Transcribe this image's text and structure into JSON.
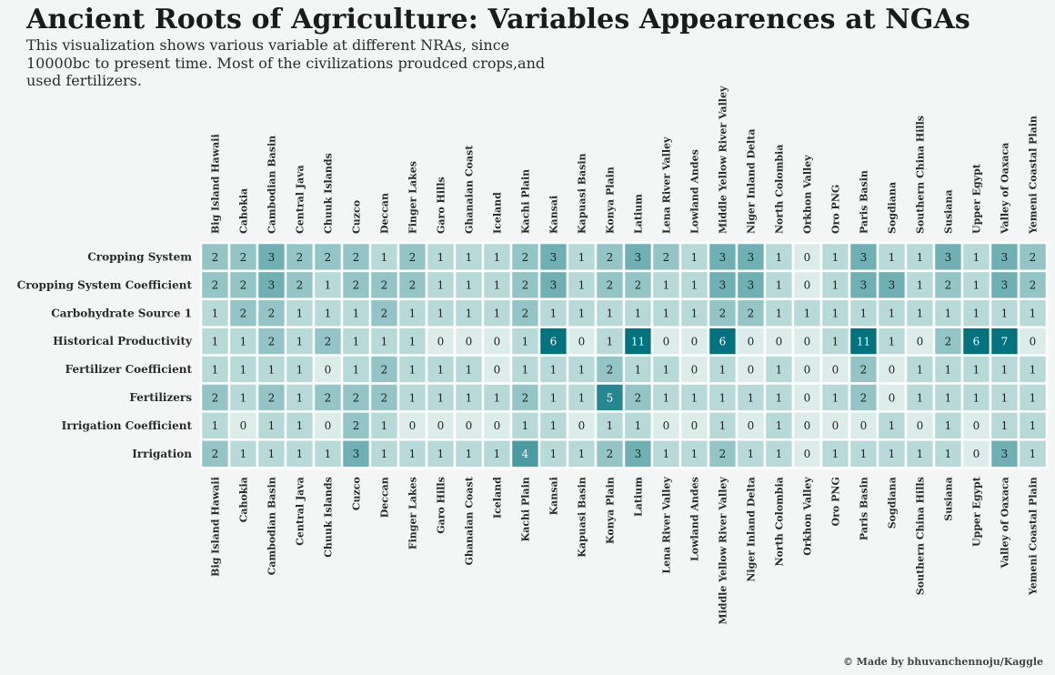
{
  "title": "Ancient Roots of Agriculture: Variables Appearences at NGAs",
  "subtitle": "This visualization shows various variable at different NRAs, since 10000bc to present time. Most of the civilizations proudced crops,and used fertilizers.",
  "credit": "© Made by bhuvanchennoju/Kaggle",
  "colors": {
    "background": "#f4f6f5",
    "low": "#dcede9",
    "high": "#00737f",
    "cell_border": "#ffffff"
  },
  "chart_data": {
    "type": "heatmap",
    "title": "Ancient Roots of Agriculture: Variables Appearences at NGAs",
    "color_max": 6,
    "x_labels_position": "top and bottom",
    "columns": [
      "Big Island Hawaii",
      "Cahokia",
      "Cambodian Basin",
      "Central Java",
      "Chuuk Islands",
      "Cuzco",
      "Deccan",
      "Finger Lakes",
      "Garo Hills",
      "Ghanaian Coast",
      "Iceland",
      "Kachi Plain",
      "Kansai",
      "Kapuasi Basin",
      "Konya Plain",
      "Latium",
      "Lena River Valley",
      "Lowland Andes",
      "Middle Yellow River Valley",
      "Niger Inland Delta",
      "North Colombia",
      "Orkhon Valley",
      "Oro PNG",
      "Paris Basin",
      "Sogdiana",
      "Southern China Hills",
      "Susiana",
      "Upper Egypt",
      "Valley of Oaxaca",
      "Yemeni Coastal Plain"
    ],
    "rows": [
      "Cropping System",
      "Cropping System Coefficient",
      "Carbohydrate Source 1",
      "Historical Productivity",
      "Fertilizer Coefficient",
      "Fertilizers",
      "Irrigation Coefficient",
      "Irrigation"
    ],
    "values": [
      [
        2,
        2,
        3,
        2,
        2,
        2,
        1,
        2,
        1,
        1,
        1,
        2,
        3,
        1,
        2,
        3,
        2,
        1,
        3,
        3,
        1,
        0,
        1,
        3,
        1,
        1,
        3,
        1,
        3,
        2
      ],
      [
        2,
        2,
        3,
        2,
        1,
        2,
        2,
        2,
        1,
        1,
        1,
        2,
        3,
        1,
        2,
        2,
        1,
        1,
        3,
        3,
        1,
        0,
        1,
        3,
        3,
        1,
        2,
        1,
        3,
        2
      ],
      [
        1,
        2,
        2,
        1,
        1,
        1,
        2,
        1,
        1,
        1,
        1,
        2,
        1,
        1,
        1,
        1,
        1,
        1,
        2,
        2,
        1,
        1,
        1,
        1,
        1,
        1,
        1,
        1,
        1,
        1
      ],
      [
        1,
        1,
        2,
        1,
        2,
        1,
        1,
        1,
        0,
        0,
        0,
        1,
        6,
        0,
        1,
        11,
        0,
        0,
        6,
        0,
        0,
        0,
        1,
        11,
        1,
        0,
        2,
        6,
        7,
        0
      ],
      [
        1,
        1,
        1,
        1,
        0,
        1,
        2,
        1,
        1,
        1,
        0,
        1,
        1,
        1,
        2,
        1,
        1,
        0,
        1,
        0,
        1,
        0,
        0,
        2,
        0,
        1,
        1,
        1,
        1,
        1
      ],
      [
        2,
        1,
        2,
        1,
        2,
        2,
        2,
        1,
        1,
        1,
        1,
        2,
        1,
        1,
        5,
        2,
        1,
        1,
        1,
        1,
        1,
        0,
        1,
        2,
        0,
        1,
        1,
        1,
        1,
        1
      ],
      [
        1,
        0,
        1,
        1,
        0,
        2,
        1,
        0,
        0,
        0,
        0,
        1,
        1,
        0,
        1,
        1,
        0,
        0,
        1,
        0,
        1,
        0,
        0,
        0,
        1,
        0,
        1,
        0,
        1,
        1
      ],
      [
        2,
        1,
        1,
        1,
        1,
        3,
        1,
        1,
        1,
        1,
        1,
        4,
        1,
        1,
        2,
        3,
        1,
        1,
        2,
        1,
        1,
        0,
        1,
        1,
        1,
        1,
        1,
        0,
        3,
        1
      ]
    ]
  }
}
